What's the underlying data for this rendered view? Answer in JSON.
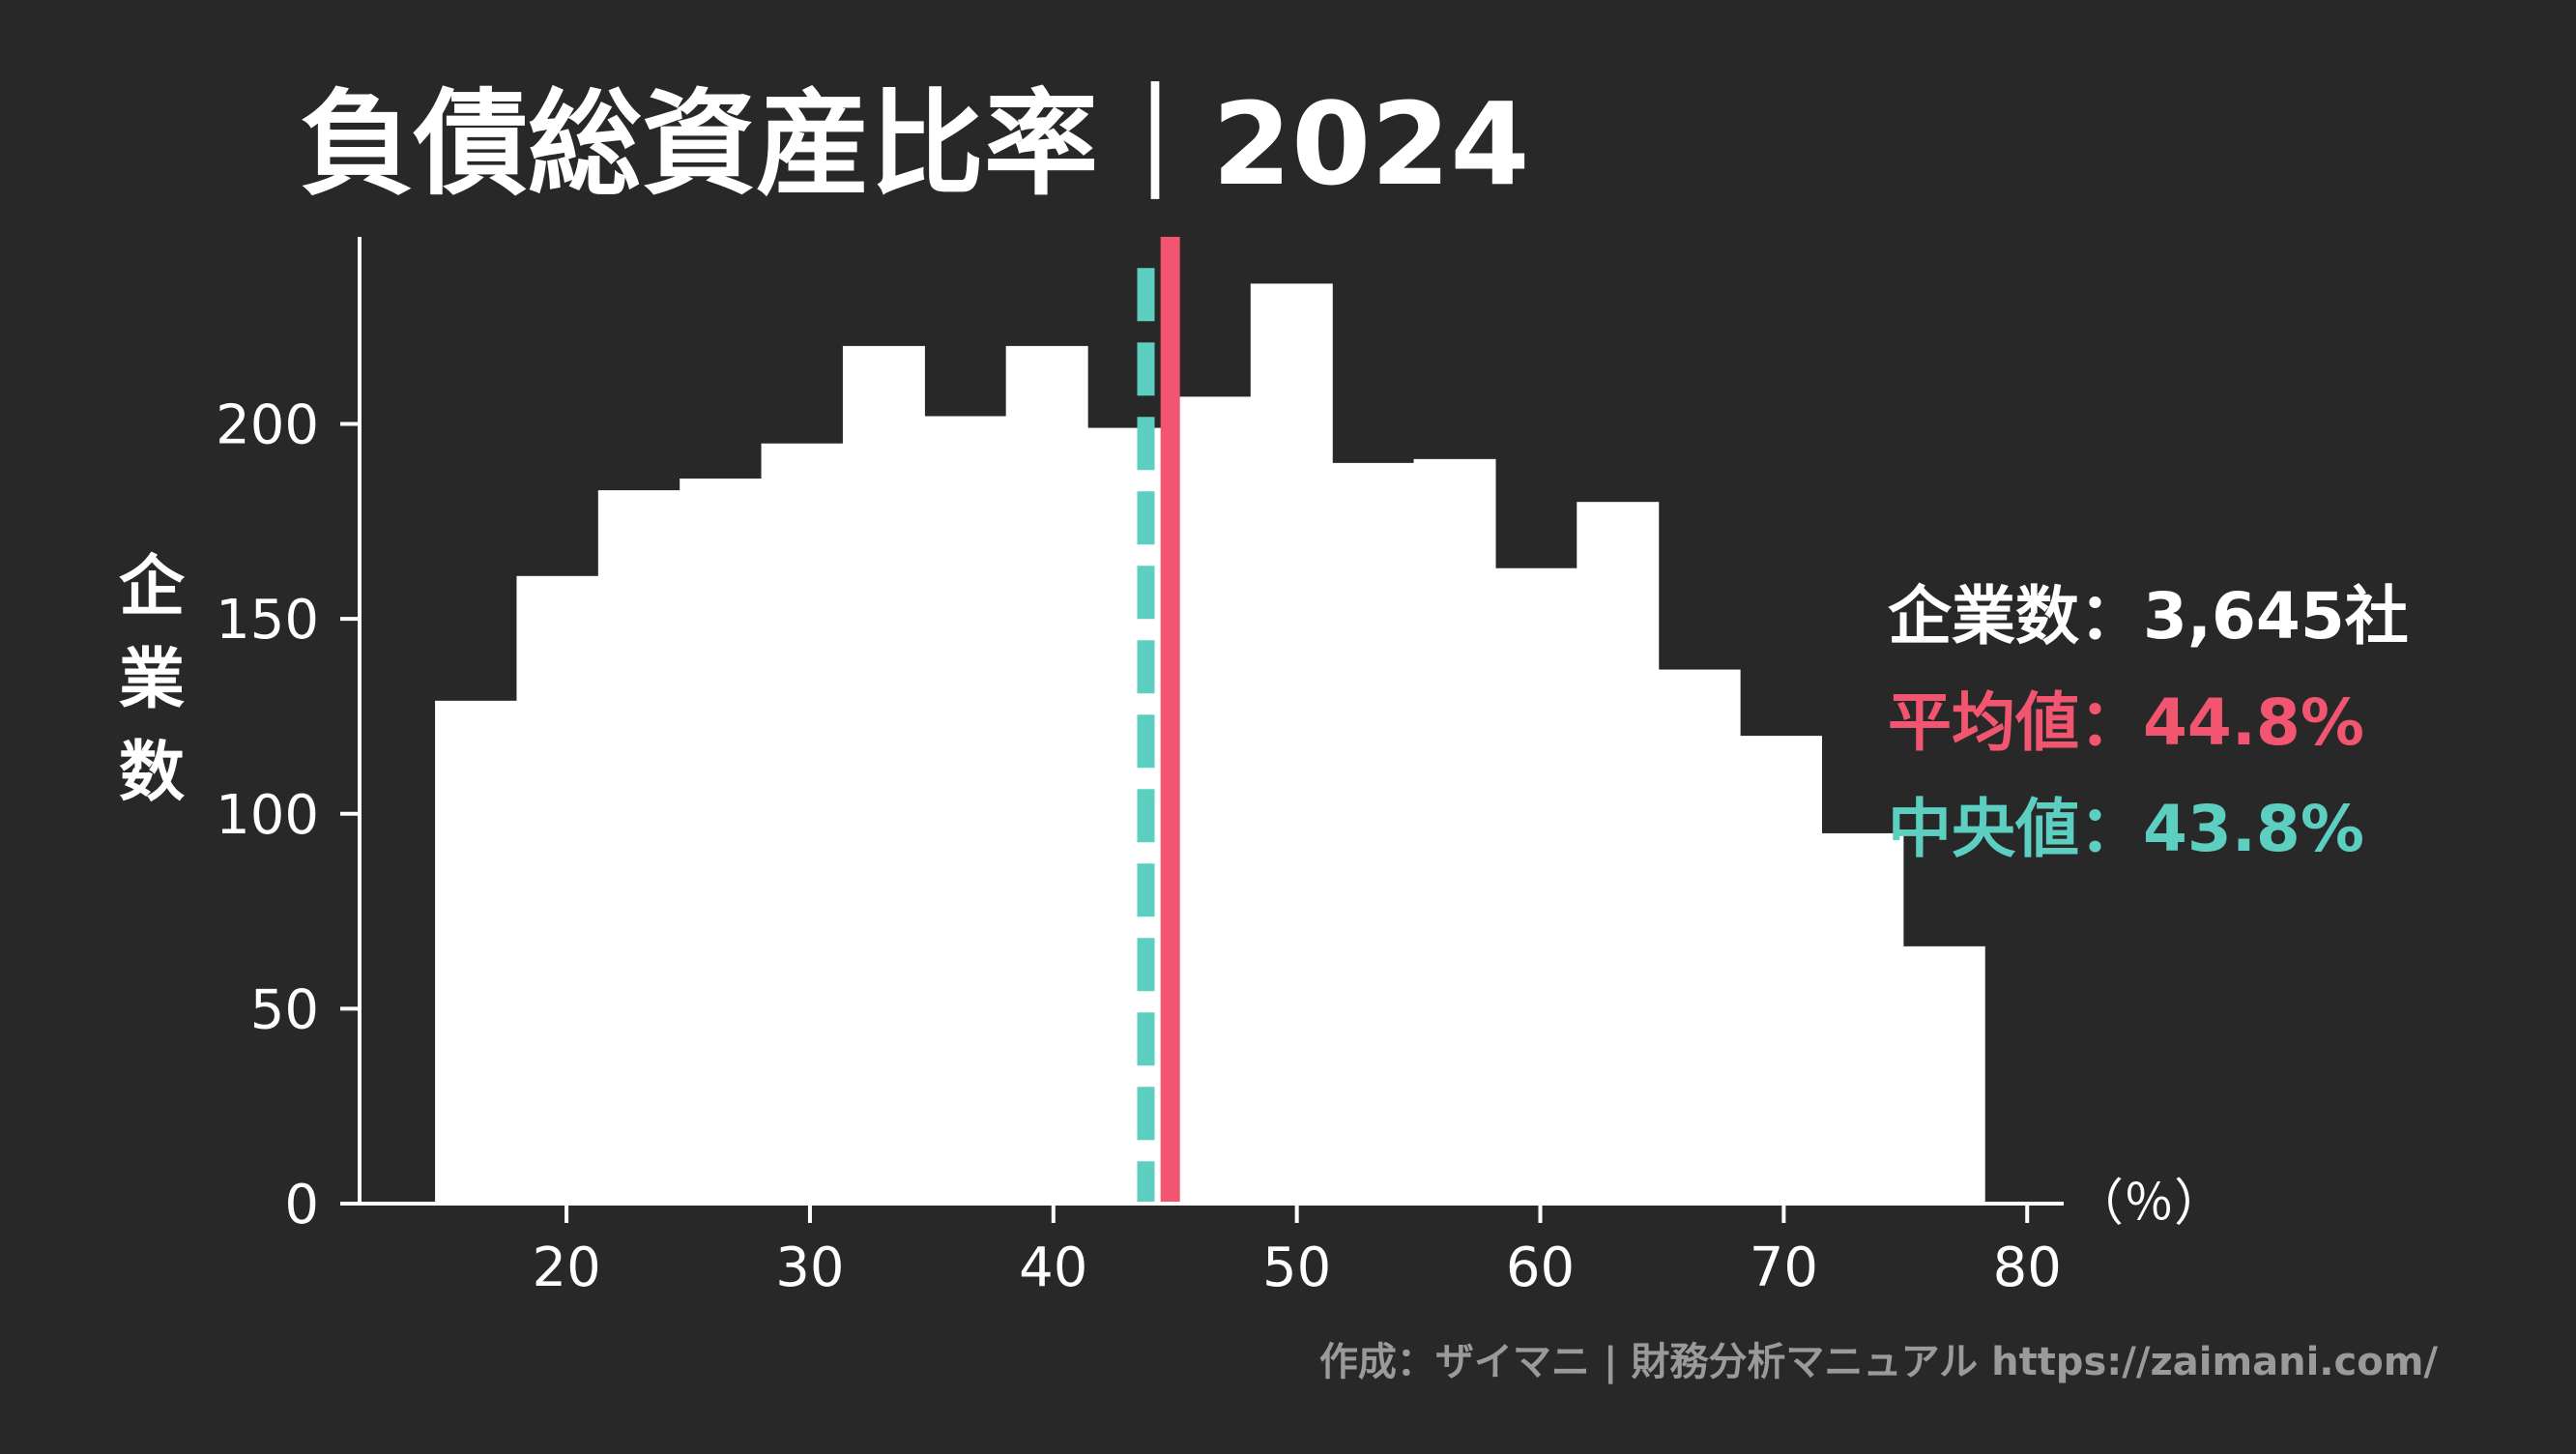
{
  "colors": {
    "background": "#282828",
    "bars": "#ffffff",
    "axis": "#ffffff",
    "mean": "#f2556f",
    "median": "#5ccfc0",
    "credit": "#9a9a9a"
  },
  "chart_data": {
    "type": "bar",
    "title": "負債総資産比率｜2024",
    "xlabel": "（％）",
    "ylabel": "企業数",
    "xlim": [
      11.5,
      81.5
    ],
    "ylim": [
      0,
      248
    ],
    "xticks": [
      20,
      30,
      40,
      50,
      60,
      70,
      80
    ],
    "yticks": [
      0,
      50,
      100,
      150,
      200
    ],
    "bin_edges": [
      14.6,
      17.95,
      21.3,
      24.65,
      28.0,
      31.35,
      34.7,
      38.05,
      41.4,
      44.75,
      48.1,
      51.45,
      54.8,
      58.15,
      61.5,
      64.85,
      68.2,
      71.55,
      74.9,
      78.25
    ],
    "values": [
      129,
      161,
      183,
      186,
      195,
      220,
      202,
      220,
      199,
      207,
      236,
      190,
      191,
      163,
      180,
      137,
      120,
      95,
      66
    ],
    "mean": 44.8,
    "median": 43.8,
    "legend": {
      "count": "企業数：3,645社",
      "mean": "平均値：44.8%",
      "median": "中央値：43.8%"
    },
    "legend_position": "right",
    "grid": false
  },
  "credit": "作成：ザイマニ | 財務分析マニュアル https://zaimani.com/"
}
